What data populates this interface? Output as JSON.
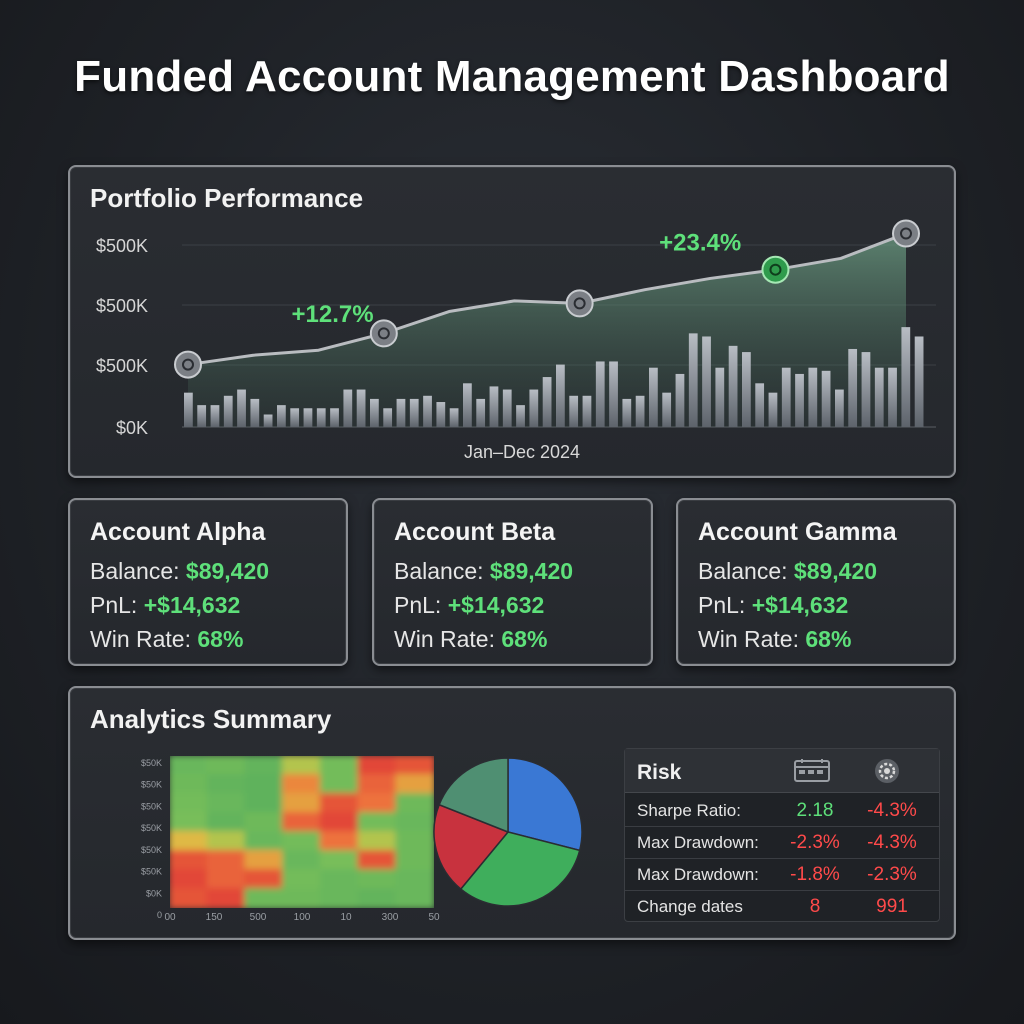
{
  "page_title": "Funded Account Management Dashboard",
  "performance": {
    "title": "Portfolio Performance",
    "x_label": "Jan–Dec 2024",
    "y_ticks": [
      "$500K",
      "$500K",
      "$500K",
      "$0K"
    ],
    "annotations": [
      "+12.7%",
      "+23.4%"
    ]
  },
  "accounts": [
    {
      "name": "Account Alpha",
      "balance_label": "Balance:",
      "balance": "$89,420",
      "pnl_label": "PnL:",
      "pnl": "+$14,632",
      "winrate_label": "Win Rate:",
      "winrate": "68%"
    },
    {
      "name": "Account Beta",
      "balance_label": "Balance:",
      "balance": "$89,420",
      "pnl_label": "PnL:",
      "pnl": "+$14,632",
      "winrate_label": "Win Rate:",
      "winrate": "68%"
    },
    {
      "name": "Account Gamma",
      "balance_label": "Balance:",
      "balance": "$89,420",
      "pnl_label": "PnL:",
      "pnl": "+$14,632",
      "winrate_label": "Win Rate:",
      "winrate": "68%"
    }
  ],
  "analytics": {
    "title": "Analytics Summary",
    "heatmap": {
      "y_ticks": [
        "$50K",
        "$50K",
        "$50K",
        "$50K",
        "$50K",
        "$50K",
        "$0K",
        "0"
      ],
      "x_ticks": [
        "00",
        "150",
        "500",
        "100",
        "10",
        "300",
        "50"
      ],
      "values": [
        [
          0.3,
          0.35,
          0.25,
          0.55,
          0.4,
          0.95,
          0.9
        ],
        [
          0.35,
          0.25,
          0.2,
          0.75,
          0.4,
          0.85,
          0.7
        ],
        [
          0.4,
          0.3,
          0.2,
          0.7,
          0.9,
          0.8,
          0.35
        ],
        [
          0.45,
          0.25,
          0.35,
          0.85,
          0.95,
          0.4,
          0.3
        ],
        [
          0.65,
          0.55,
          0.3,
          0.4,
          0.8,
          0.55,
          0.35
        ],
        [
          0.9,
          0.85,
          0.7,
          0.3,
          0.45,
          0.9,
          0.35
        ],
        [
          0.95,
          0.85,
          0.9,
          0.4,
          0.3,
          0.35,
          0.3
        ],
        [
          0.9,
          0.95,
          0.35,
          0.35,
          0.3,
          0.25,
          0.3
        ]
      ]
    },
    "pie": {
      "slices": [
        {
          "value": 29,
          "color": "#3a78d4"
        },
        {
          "value": 32,
          "color": "#3fae5c"
        },
        {
          "value": 20,
          "color": "#c8323e"
        },
        {
          "value": 19,
          "color": "#4f8f72"
        }
      ]
    },
    "risk": {
      "title": "Risk",
      "header_icons": [
        "calendar-icon",
        "settings-icon"
      ],
      "rows": [
        {
          "label": "Sharpe Ratio:",
          "v1": "2.18",
          "v1_tone": "pos",
          "v2": "-4.3%",
          "v2_tone": "neg"
        },
        {
          "label": "Max Drawdown:",
          "v1": "-2.3%",
          "v1_tone": "neg",
          "v2": "-4.3%",
          "v2_tone": "neg"
        },
        {
          "label": "Max Drawdown:",
          "v1": "-1.8%",
          "v1_tone": "neg",
          "v2": "-2.3%",
          "v2_tone": "neg"
        },
        {
          "label": "Change dates",
          "v1": "8",
          "v1_tone": "neg",
          "v2": "991",
          "v2_tone": "neg"
        }
      ]
    }
  },
  "chart_data": [
    {
      "type": "line",
      "title": "Portfolio Performance",
      "xlabel": "Jan–Dec 2024",
      "ylabel": "",
      "y_tick_labels": [
        "$500K",
        "$500K",
        "$500K",
        "$0K"
      ],
      "x": [
        1,
        2,
        3,
        4,
        5,
        6,
        7,
        8,
        9,
        10,
        11,
        12
      ],
      "series": [
        {
          "values": [
            1.0,
            1.15,
            1.23,
            1.5,
            1.85,
            2.02,
            1.98,
            2.2,
            2.38,
            2.52,
            2.7,
            3.1
          ]
        }
      ],
      "annotations": [
        {
          "x": 3,
          "text": "+12.7%"
        },
        {
          "x": 9,
          "text": "+23.4%"
        }
      ],
      "bars": [
        0.55,
        0.35,
        0.35,
        0.5,
        0.6,
        0.45,
        0.2,
        0.35,
        0.3,
        0.3,
        0.3,
        0.3,
        0.6,
        0.6,
        0.45,
        0.3,
        0.45,
        0.45,
        0.5,
        0.4,
        0.3,
        0.7,
        0.45,
        0.65,
        0.6,
        0.35,
        0.6,
        0.8,
        1.0,
        0.5,
        0.5,
        1.05,
        1.05,
        0.45,
        0.5,
        0.95,
        0.55,
        0.85,
        1.5,
        1.45,
        0.95,
        1.3,
        1.2,
        0.7,
        0.55,
        0.95,
        0.85,
        0.95,
        0.9,
        0.6,
        1.25,
        1.2,
        0.95,
        0.95,
        1.6,
        1.45
      ],
      "grid": true
    },
    {
      "type": "heatmap",
      "title": "",
      "x_tick_labels": [
        "00",
        "150",
        "500",
        "100",
        "10",
        "300",
        "50"
      ],
      "y_tick_labels": [
        "$50K",
        "$50K",
        "$50K",
        "$50K",
        "$50K",
        "$50K",
        "$0K",
        "0"
      ]
    },
    {
      "type": "pie",
      "title": "",
      "values": [
        29,
        32,
        20,
        19
      ]
    }
  ],
  "colors": {
    "positive": "#5ee07a",
    "negative": "#ff4a4a",
    "panel_border": "#8a8d92",
    "line": "#b9bcc0",
    "area": "#5f8f77"
  }
}
